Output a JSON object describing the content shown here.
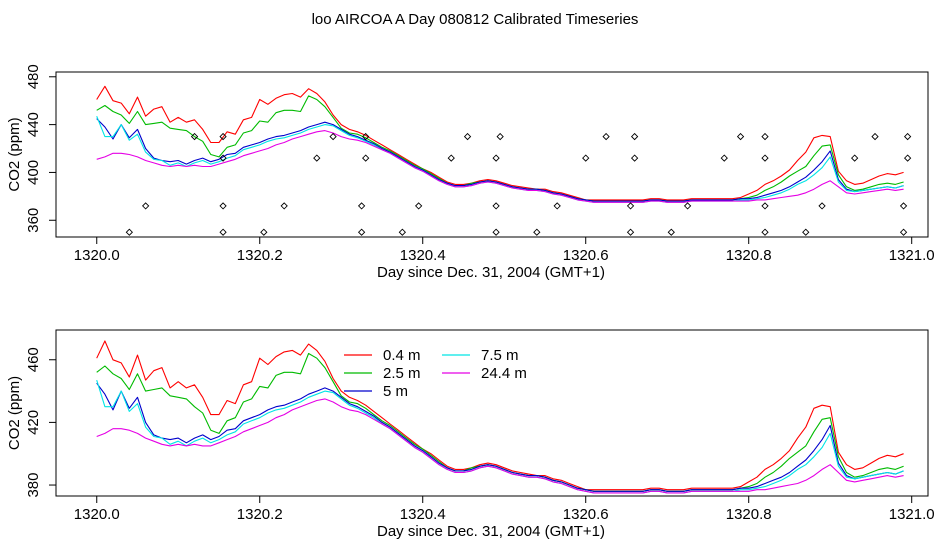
{
  "title": "loo AIRCOA A  Day 080812  Calibrated Timeseries",
  "chart_data": [
    {
      "type": "scatter",
      "xlabel": "Day since Dec. 31, 2004 (GMT+1)",
      "ylabel": "CO2 (ppm)",
      "xlim": [
        1319.95,
        1321.02
      ],
      "ylim": [
        346,
        484
      ],
      "x_ticks": [
        "1320.0",
        "1320.2",
        "1320.4",
        "1320.6",
        "1320.8",
        "1321.0"
      ],
      "x_tick_values": [
        1320.0,
        1320.2,
        1320.4,
        1320.6,
        1320.8,
        1321.0
      ],
      "y_ticks": [
        "360",
        "400",
        "440",
        "480"
      ],
      "y_tick_values": [
        360,
        400,
        440,
        480
      ],
      "grid": false,
      "line_series": [
        "0.4 m",
        "2.5 m",
        "5 m",
        "7.5 m",
        "24.4 m"
      ],
      "point_series": {
        "marker": "open-diamond",
        "x": [
          1320.04,
          1320.06,
          1320.12,
          1320.155,
          1320.155,
          1320.155,
          1320.155,
          1320.205,
          1320.23,
          1320.27,
          1320.29,
          1320.325,
          1320.325,
          1320.33,
          1320.33,
          1320.375,
          1320.395,
          1320.435,
          1320.455,
          1320.49,
          1320.49,
          1320.49,
          1320.495,
          1320.54,
          1320.565,
          1320.6,
          1320.625,
          1320.655,
          1320.655,
          1320.66,
          1320.66,
          1320.705,
          1320.725,
          1320.77,
          1320.79,
          1320.82,
          1320.82,
          1320.82,
          1320.82,
          1320.87,
          1320.89,
          1320.93,
          1320.955,
          1320.99,
          1320.99,
          1320.995,
          1320.995
        ],
        "y": [
          350,
          372,
          430,
          350,
          372,
          412,
          430,
          350,
          372,
          412,
          430,
          350,
          372,
          412,
          430,
          350,
          372,
          412,
          430,
          350,
          372,
          412,
          430,
          350,
          372,
          412,
          430,
          350,
          372,
          412,
          430,
          350,
          372,
          412,
          430,
          350,
          372,
          412,
          430,
          350,
          372,
          412,
          430,
          350,
          372,
          412,
          430
        ]
      }
    },
    {
      "type": "line",
      "xlabel": "Day since Dec. 31, 2004 (GMT+1)",
      "ylabel": "CO2 (ppm)",
      "xlim": [
        1319.95,
        1321.02
      ],
      "ylim": [
        373,
        479
      ],
      "x_ticks": [
        "1320.0",
        "1320.2",
        "1320.4",
        "1320.6",
        "1320.8",
        "1321.0"
      ],
      "x_tick_values": [
        1320.0,
        1320.2,
        1320.4,
        1320.6,
        1320.8,
        1321.0
      ],
      "y_ticks": [
        "380",
        "420",
        "460"
      ],
      "y_tick_values": [
        380,
        420,
        460
      ],
      "grid": false,
      "legend_position": "top-center",
      "x": [
        1320.0,
        1320.01,
        1320.02,
        1320.03,
        1320.04,
        1320.05,
        1320.06,
        1320.07,
        1320.08,
        1320.09,
        1320.1,
        1320.11,
        1320.12,
        1320.13,
        1320.14,
        1320.15,
        1320.16,
        1320.17,
        1320.18,
        1320.19,
        1320.2,
        1320.21,
        1320.22,
        1320.23,
        1320.24,
        1320.25,
        1320.26,
        1320.27,
        1320.28,
        1320.29,
        1320.3,
        1320.31,
        1320.32,
        1320.33,
        1320.34,
        1320.35,
        1320.36,
        1320.37,
        1320.38,
        1320.39,
        1320.4,
        1320.41,
        1320.42,
        1320.43,
        1320.44,
        1320.45,
        1320.46,
        1320.47,
        1320.48,
        1320.49,
        1320.5,
        1320.51,
        1320.52,
        1320.53,
        1320.54,
        1320.55,
        1320.56,
        1320.57,
        1320.58,
        1320.59,
        1320.6,
        1320.61,
        1320.62,
        1320.63,
        1320.64,
        1320.65,
        1320.66,
        1320.67,
        1320.68,
        1320.69,
        1320.7,
        1320.71,
        1320.72,
        1320.73,
        1320.74,
        1320.75,
        1320.76,
        1320.77,
        1320.78,
        1320.79,
        1320.8,
        1320.81,
        1320.82,
        1320.83,
        1320.84,
        1320.85,
        1320.86,
        1320.87,
        1320.88,
        1320.89,
        1320.9,
        1320.91,
        1320.92,
        1320.93,
        1320.94,
        1320.95,
        1320.96,
        1320.97,
        1320.98,
        1320.99
      ],
      "series": [
        {
          "name": "0.4 m",
          "color": "#ff0000",
          "values": [
            461,
            472,
            460,
            458,
            449,
            463,
            447,
            453,
            455,
            442,
            446,
            442,
            444,
            436,
            425,
            425,
            434,
            432,
            444,
            446,
            461,
            457,
            462,
            465,
            466,
            463,
            470,
            466,
            459,
            448,
            440,
            436,
            434,
            431,
            427,
            423,
            419,
            415,
            411,
            407,
            403,
            400,
            396,
            392,
            390,
            390,
            391,
            393,
            394,
            393,
            391,
            389,
            388,
            387,
            386,
            386,
            384,
            383,
            381,
            379,
            377,
            377,
            377,
            377,
            377,
            377,
            377,
            377,
            378,
            378,
            377,
            377,
            377,
            378,
            378,
            378,
            378,
            378,
            378,
            379,
            382,
            385,
            390,
            393,
            397,
            402,
            410,
            417,
            429,
            431,
            430,
            401,
            393,
            390,
            391,
            394,
            397,
            399,
            398,
            400
          ]
        },
        {
          "name": "2.5 m",
          "color": "#00bb00",
          "values": [
            452,
            456,
            451,
            448,
            441,
            451,
            440,
            441,
            442,
            437,
            436,
            435,
            430,
            426,
            415,
            413,
            421,
            423,
            433,
            435,
            443,
            442,
            450,
            452,
            452,
            451,
            464,
            461,
            455,
            446,
            437,
            433,
            432,
            429,
            425,
            421,
            418,
            414,
            410,
            406,
            403,
            399,
            395,
            391,
            389,
            389,
            391,
            392,
            393,
            392,
            390,
            388,
            387,
            386,
            386,
            385,
            383,
            382,
            380,
            378,
            377,
            376,
            376,
            376,
            376,
            376,
            376,
            376,
            377,
            377,
            376,
            376,
            376,
            377,
            377,
            377,
            377,
            377,
            377,
            378,
            379,
            381,
            385,
            388,
            392,
            397,
            401,
            405,
            414,
            422,
            423,
            398,
            388,
            385,
            386,
            388,
            390,
            391,
            390,
            392
          ]
        },
        {
          "name": "5 m",
          "color": "#0000cc",
          "values": [
            445,
            438,
            428,
            440,
            429,
            436,
            420,
            412,
            410,
            409,
            410,
            407,
            410,
            412,
            409,
            411,
            415,
            416,
            421,
            423,
            425,
            428,
            430,
            431,
            433,
            435,
            438,
            440,
            442,
            440,
            436,
            432,
            430,
            427,
            424,
            420,
            417,
            413,
            409,
            405,
            402,
            398,
            394,
            391,
            389,
            389,
            390,
            392,
            393,
            392,
            390,
            388,
            387,
            386,
            386,
            385,
            383,
            382,
            380,
            378,
            377,
            376,
            376,
            376,
            376,
            376,
            376,
            376,
            377,
            377,
            376,
            376,
            376,
            377,
            377,
            377,
            377,
            377,
            377,
            378,
            378,
            379,
            381,
            383,
            385,
            388,
            392,
            396,
            402,
            409,
            418,
            394,
            386,
            384,
            385,
            386,
            387,
            388,
            387,
            389
          ]
        },
        {
          "name": "7.5 m",
          "color": "#00e5e5",
          "values": [
            447,
            430,
            430,
            440,
            427,
            432,
            417,
            411,
            410,
            406,
            408,
            405,
            408,
            410,
            407,
            409,
            412,
            414,
            419,
            421,
            423,
            426,
            428,
            429,
            431,
            433,
            436,
            438,
            440,
            439,
            435,
            431,
            429,
            426,
            423,
            419,
            416,
            412,
            408,
            404,
            401,
            397,
            393,
            390,
            388,
            388,
            389,
            391,
            392,
            391,
            389,
            387,
            386,
            385,
            385,
            384,
            382,
            381,
            379,
            377,
            376,
            375,
            375,
            375,
            375,
            375,
            375,
            375,
            376,
            376,
            375,
            375,
            375,
            376,
            376,
            376,
            376,
            376,
            376,
            377,
            377,
            378,
            379,
            381,
            383,
            386,
            390,
            393,
            398,
            404,
            413,
            392,
            385,
            384,
            385,
            386,
            387,
            388,
            387,
            389
          ]
        },
        {
          "name": "24.4 m",
          "color": "#e500e5",
          "values": [
            411,
            413,
            416,
            416,
            415,
            413,
            410,
            408,
            406,
            405,
            406,
            405,
            406,
            405,
            405,
            407,
            409,
            411,
            414,
            416,
            418,
            420,
            423,
            425,
            428,
            430,
            432,
            434,
            435,
            433,
            430,
            428,
            427,
            425,
            422,
            419,
            416,
            412,
            408,
            404,
            401,
            397,
            393,
            390,
            388,
            388,
            389,
            391,
            392,
            391,
            389,
            387,
            386,
            385,
            385,
            384,
            382,
            381,
            379,
            377,
            376,
            375,
            375,
            375,
            375,
            375,
            375,
            375,
            376,
            376,
            375,
            375,
            375,
            376,
            376,
            376,
            376,
            376,
            376,
            376,
            376,
            377,
            377,
            378,
            379,
            380,
            381,
            383,
            386,
            390,
            393,
            388,
            383,
            382,
            383,
            384,
            385,
            386,
            385,
            386
          ]
        }
      ]
    }
  ]
}
